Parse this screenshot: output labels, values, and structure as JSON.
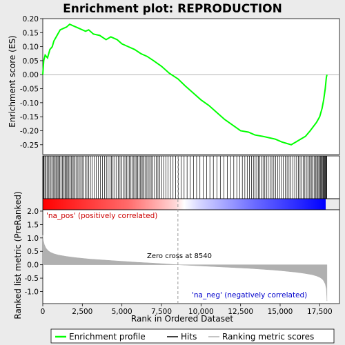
{
  "chart_data": {
    "type": "line",
    "title": "Enrichment plot: REPRODUCTION",
    "top_panel": {
      "ylabel": "Enrichment score (ES)",
      "ylim": [
        -0.285,
        0.2
      ],
      "yticks": [
        0.2,
        0.15,
        0.1,
        0.05,
        0.0,
        -0.05,
        -0.1,
        -0.15,
        -0.2,
        -0.25
      ],
      "ytick_labels": [
        "0.20",
        "0.15",
        "0.10",
        "0.05",
        "0.00",
        "-0.05",
        "-0.10",
        "-0.15",
        "-0.20",
        "-0.25"
      ],
      "series_name": "Enrichment profile",
      "color": "#00ff00",
      "points": [
        [
          0,
          0.0
        ],
        [
          60,
          0.05
        ],
        [
          150,
          0.07
        ],
        [
          300,
          0.06
        ],
        [
          450,
          0.09
        ],
        [
          600,
          0.1
        ],
        [
          700,
          0.12
        ],
        [
          900,
          0.14
        ],
        [
          1100,
          0.16
        ],
        [
          1300,
          0.165
        ],
        [
          1500,
          0.17
        ],
        [
          1700,
          0.18
        ],
        [
          1900,
          0.175
        ],
        [
          2100,
          0.17
        ],
        [
          2300,
          0.165
        ],
        [
          2500,
          0.16
        ],
        [
          2700,
          0.155
        ],
        [
          2900,
          0.16
        ],
        [
          3200,
          0.145
        ],
        [
          3600,
          0.14
        ],
        [
          4000,
          0.125
        ],
        [
          4300,
          0.135
        ],
        [
          4700,
          0.125
        ],
        [
          5000,
          0.11
        ],
        [
          5400,
          0.1
        ],
        [
          5800,
          0.09
        ],
        [
          6200,
          0.075
        ],
        [
          6600,
          0.065
        ],
        [
          7000,
          0.05
        ],
        [
          7500,
          0.03
        ],
        [
          8000,
          0.005
        ],
        [
          8540,
          -0.015
        ],
        [
          9000,
          -0.04
        ],
        [
          9500,
          -0.065
        ],
        [
          10000,
          -0.09
        ],
        [
          10500,
          -0.11
        ],
        [
          11000,
          -0.135
        ],
        [
          11500,
          -0.16
        ],
        [
          12000,
          -0.18
        ],
        [
          12500,
          -0.2
        ],
        [
          13000,
          -0.205
        ],
        [
          13400,
          -0.215
        ],
        [
          13900,
          -0.22
        ],
        [
          14300,
          -0.225
        ],
        [
          14700,
          -0.23
        ],
        [
          15100,
          -0.24
        ],
        [
          15400,
          -0.245
        ],
        [
          15700,
          -0.25
        ],
        [
          16000,
          -0.24
        ],
        [
          16300,
          -0.23
        ],
        [
          16600,
          -0.22
        ],
        [
          16900,
          -0.2
        ],
        [
          17100,
          -0.185
        ],
        [
          17300,
          -0.17
        ],
        [
          17500,
          -0.15
        ],
        [
          17650,
          -0.12
        ],
        [
          17750,
          -0.09
        ],
        [
          17850,
          -0.05
        ],
        [
          17920,
          -0.01
        ],
        [
          17960,
          0.0
        ]
      ]
    },
    "hits_panel": {
      "label": "Hits",
      "hit_ranks": [
        15,
        40,
        80,
        140,
        210,
        290,
        360,
        440,
        520,
        610,
        690,
        760,
        830,
        900,
        960,
        1020,
        1080,
        1160,
        1240,
        1320,
        1400,
        1460,
        1520,
        1580,
        1650,
        1720,
        1800,
        1880,
        1960,
        2040,
        2130,
        2220,
        2310,
        2400,
        2490,
        2580,
        2680,
        2790,
        2900,
        3010,
        3120,
        3250,
        3380,
        3510,
        3640,
        3770,
        3900,
        4020,
        4130,
        4240,
        4340,
        4440,
        4550,
        4660,
        4770,
        4880,
        4990,
        5090,
        5190,
        5290,
        5390,
        5480,
        5570,
        5660,
        5750,
        5840,
        5920,
        6000,
        6080,
        6160,
        6240,
        6320,
        6400,
        6490,
        6580,
        6670,
        6760,
        6850,
        6950,
        7060,
        7170,
        7280,
        7390,
        7510,
        7640,
        7780,
        7920,
        8070,
        8230,
        8400,
        8560,
        8740,
        8930,
        9120,
        9320,
        9520,
        9720,
        9930,
        10140,
        10350,
        10560,
        10780,
        11000,
        11220,
        11440,
        11660,
        11870,
        12070,
        12260,
        12440,
        12610,
        12770,
        12920,
        13060,
        13190,
        13310,
        13420,
        13520,
        13620,
        13720,
        13820,
        13920,
        14030,
        14140,
        14250,
        14360,
        14480,
        14600,
        14720,
        14840,
        14960,
        15080,
        15200,
        15320,
        15440,
        15560,
        15680,
        15800,
        15920,
        16040,
        16150,
        16260,
        16360,
        16460,
        16560,
        16660,
        16750,
        16840,
        16920,
        17000,
        17080,
        17160,
        17240,
        17310,
        17380,
        17440,
        17500,
        17550,
        17600,
        17650,
        17700,
        17740,
        17780,
        17820,
        17860,
        17890,
        17920,
        17945
      ]
    },
    "bottom_panel": {
      "ylabel": "Ranked list metric (PreRanked)",
      "ylim": [
        -1.45,
        2.05
      ],
      "yticks": [
        2.0,
        1.5,
        1.0,
        0.5,
        0.0,
        -0.5,
        -1.0
      ],
      "ytick_labels": [
        "2.0",
        "1.5",
        "1.0",
        "0.5",
        "0.0",
        "-0.5",
        "-1.0"
      ],
      "series_name": "Ranking metric scores",
      "color": "#b0b0b0",
      "points": [
        [
          0,
          1.1
        ],
        [
          40,
          0.9
        ],
        [
          100,
          0.75
        ],
        [
          200,
          0.62
        ],
        [
          350,
          0.52
        ],
        [
          500,
          0.46
        ],
        [
          700,
          0.41
        ],
        [
          1000,
          0.36
        ],
        [
          1500,
          0.31
        ],
        [
          2000,
          0.27
        ],
        [
          2500,
          0.24
        ],
        [
          3000,
          0.21
        ],
        [
          3500,
          0.19
        ],
        [
          4000,
          0.17
        ],
        [
          4500,
          0.15
        ],
        [
          5000,
          0.13
        ],
        [
          5500,
          0.11
        ],
        [
          6000,
          0.09
        ],
        [
          6500,
          0.075
        ],
        [
          7000,
          0.06
        ],
        [
          7500,
          0.04
        ],
        [
          8000,
          0.02
        ],
        [
          8540,
          0.0
        ],
        [
          9000,
          -0.015
        ],
        [
          9500,
          -0.03
        ],
        [
          10000,
          -0.045
        ],
        [
          10500,
          -0.06
        ],
        [
          11000,
          -0.075
        ],
        [
          11500,
          -0.09
        ],
        [
          12000,
          -0.105
        ],
        [
          12500,
          -0.12
        ],
        [
          13000,
          -0.135
        ],
        [
          13500,
          -0.155
        ],
        [
          14000,
          -0.175
        ],
        [
          14500,
          -0.195
        ],
        [
          15000,
          -0.22
        ],
        [
          15500,
          -0.25
        ],
        [
          16000,
          -0.28
        ],
        [
          16500,
          -0.32
        ],
        [
          17000,
          -0.37
        ],
        [
          17300,
          -0.42
        ],
        [
          17500,
          -0.47
        ],
        [
          17650,
          -0.53
        ],
        [
          17750,
          -0.6
        ],
        [
          17850,
          -0.72
        ],
        [
          17920,
          -0.9
        ],
        [
          17960,
          -1.35
        ]
      ],
      "annotations": {
        "pos_label": "'na_pos' (positively correlated)",
        "neg_label": "'na_neg' (negatively correlated)",
        "zero_cross_label": "Zero cross at 8540",
        "zero_cross": 8540
      }
    },
    "xlabel": "Rank in Ordered Dataset",
    "xlim": [
      0,
      18750
    ],
    "xticks": [
      0,
      2500,
      5000,
      7500,
      10000,
      12500,
      15000,
      17500
    ],
    "xtick_labels": [
      "0",
      "2,500",
      "5,000",
      "7,500",
      "10,000",
      "12,500",
      "15,000",
      "17,500"
    ],
    "n_genes": 17960,
    "legend": {
      "placement": "bottom",
      "entries": [
        "Enrichment profile",
        "Hits",
        "Ranking metric scores"
      ]
    },
    "colors": {
      "profile": "#00ff00",
      "hits": "#000000",
      "metric": "#b0b0b0",
      "pos_text": "#cc0000",
      "neg_text": "#0000cc",
      "zero_line": "#999999",
      "background": "#ebebeb",
      "panel": "#ffffff"
    }
  }
}
